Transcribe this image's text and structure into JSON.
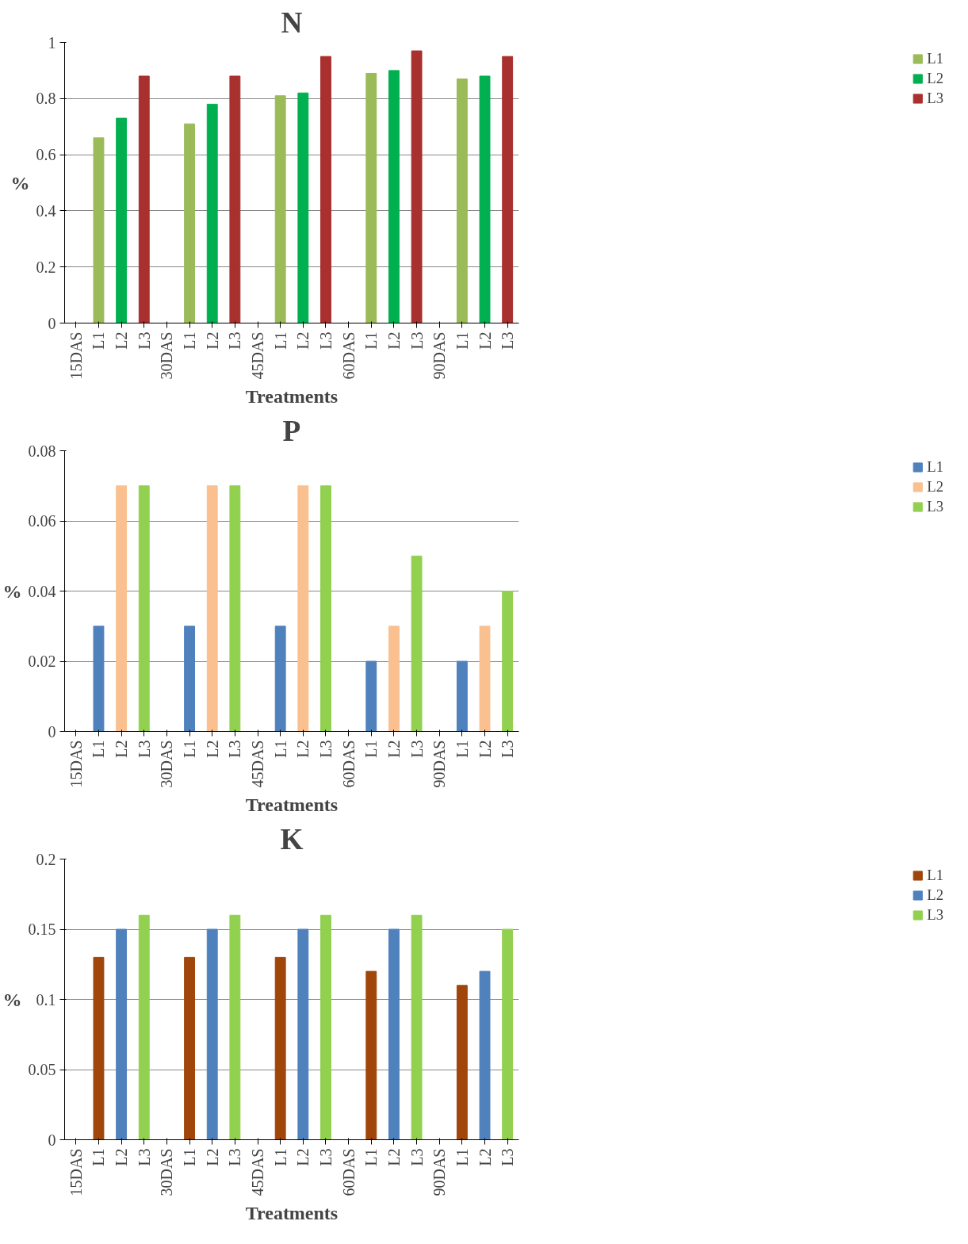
{
  "chart_data": [
    {
      "type": "bar",
      "title": "N",
      "xlabel": "Treatments",
      "ylabel": "%",
      "categories": [
        "15DAS",
        "L1",
        "L2",
        "L3",
        "30DAS",
        "L1",
        "L2",
        "L3",
        "45DAS",
        "L1",
        "L2",
        "L3",
        "60DAS",
        "L1",
        "L2",
        "L3",
        "90DAS",
        "L1",
        "L2",
        "L3"
      ],
      "series": [
        {
          "name": "L1",
          "color": "#9bbb59",
          "values": [
            null,
            0.66,
            null,
            null,
            null,
            0.71,
            null,
            null,
            null,
            0.81,
            null,
            null,
            null,
            0.89,
            null,
            null,
            null,
            0.87,
            null,
            null
          ]
        },
        {
          "name": "L2",
          "color": "#00b050",
          "values": [
            null,
            null,
            0.73,
            null,
            null,
            null,
            0.78,
            null,
            null,
            null,
            0.82,
            null,
            null,
            null,
            0.9,
            null,
            null,
            null,
            0.88,
            null
          ]
        },
        {
          "name": "L3",
          "color": "#a8302e",
          "values": [
            null,
            null,
            null,
            0.88,
            null,
            null,
            null,
            0.88,
            null,
            null,
            null,
            0.95,
            null,
            null,
            null,
            0.97,
            null,
            null,
            null,
            0.95
          ]
        }
      ],
      "ylim": [
        0,
        1
      ],
      "yticks": [
        0,
        0.2,
        0.4,
        0.6,
        0.8,
        1
      ],
      "grid": "y",
      "legend": "right"
    },
    {
      "type": "bar",
      "title": "P",
      "xlabel": "Treatments",
      "ylabel": "%",
      "categories": [
        "15DAS",
        "L1",
        "L2",
        "L3",
        "30DAS",
        "L1",
        "L2",
        "L3",
        "45DAS",
        "L1",
        "L2",
        "L3",
        "60DAS",
        "L1",
        "L2",
        "L3",
        "90DAS",
        "L1",
        "L2",
        "L3"
      ],
      "series": [
        {
          "name": "L1",
          "color": "#4f81bd",
          "values": [
            null,
            0.03,
            null,
            null,
            null,
            0.03,
            null,
            null,
            null,
            0.03,
            null,
            null,
            null,
            0.02,
            null,
            null,
            null,
            0.02,
            null,
            null
          ]
        },
        {
          "name": "L2",
          "color": "#fac090",
          "values": [
            null,
            null,
            0.07,
            null,
            null,
            null,
            0.07,
            null,
            null,
            null,
            0.07,
            null,
            null,
            null,
            0.03,
            null,
            null,
            null,
            0.03,
            null
          ]
        },
        {
          "name": "L3",
          "color": "#92d050",
          "values": [
            null,
            null,
            null,
            0.07,
            null,
            null,
            null,
            0.07,
            null,
            null,
            null,
            0.07,
            null,
            null,
            null,
            0.05,
            null,
            null,
            null,
            0.04
          ]
        }
      ],
      "ylim": [
        0,
        0.08
      ],
      "yticks": [
        0,
        0.02,
        0.04,
        0.06,
        0.08
      ],
      "grid": "y",
      "legend": "right"
    },
    {
      "type": "bar",
      "title": "K",
      "xlabel": "Treatments",
      "ylabel": "%",
      "categories": [
        "15DAS",
        "L1",
        "L2",
        "L3",
        "30DAS",
        "L1",
        "L2",
        "L3",
        "45DAS",
        "L1",
        "L2",
        "L3",
        "60DAS",
        "L1",
        "L2",
        "L3",
        "90DAS",
        "L1",
        "L2",
        "L3"
      ],
      "series": [
        {
          "name": "L1",
          "color": "#a0460a",
          "values": [
            null,
            0.13,
            null,
            null,
            null,
            0.13,
            null,
            null,
            null,
            0.13,
            null,
            null,
            null,
            0.12,
            null,
            null,
            null,
            0.11,
            null,
            null
          ]
        },
        {
          "name": "L2",
          "color": "#4f81bd",
          "values": [
            null,
            null,
            0.15,
            null,
            null,
            null,
            0.15,
            null,
            null,
            null,
            0.15,
            null,
            null,
            null,
            0.15,
            null,
            null,
            null,
            0.12,
            null
          ]
        },
        {
          "name": "L3",
          "color": "#92d050",
          "values": [
            null,
            null,
            null,
            0.16,
            null,
            null,
            null,
            0.16,
            null,
            null,
            null,
            0.16,
            null,
            null,
            null,
            0.16,
            null,
            null,
            null,
            0.15
          ]
        }
      ],
      "ylim": [
        0,
        0.2
      ],
      "yticks": [
        0,
        0.05,
        0.1,
        0.15,
        0.2
      ],
      "grid": "y",
      "legend": "right"
    }
  ]
}
